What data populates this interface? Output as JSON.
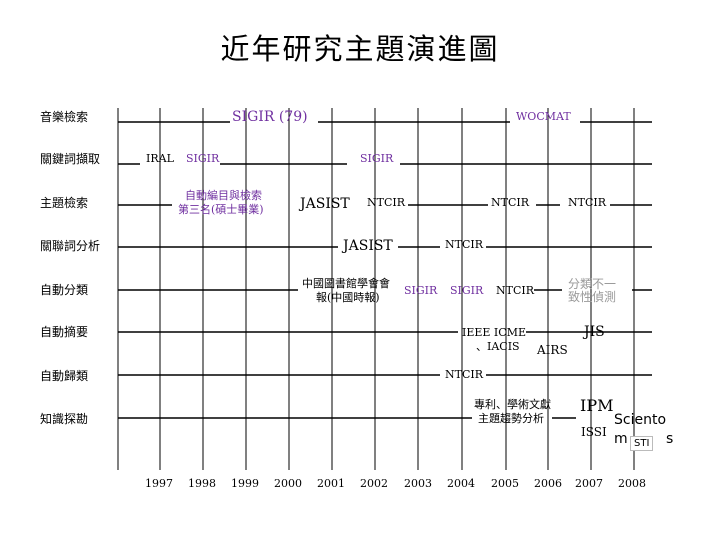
{
  "title": "近年研究主題演進圖",
  "rows": [
    "音樂檢索",
    "關鍵詞擷取",
    "主題檢索",
    "關聯詞分析",
    "自動分類",
    "自動摘要",
    "自動歸類",
    "知識探勘"
  ],
  "years": [
    "1997",
    "1998",
    "1999",
    "2000",
    "2001",
    "2002",
    "2003",
    "2004",
    "2005",
    "2006",
    "2007",
    "2008"
  ],
  "labels": {
    "sigir79": "SIGIR (79)",
    "wocmat": "WOCMAT",
    "iral": "IRAL",
    "sigir_r2a": "SIGIR",
    "sigir_r2b": "SIGIR",
    "auto_index_1": "自動編目與檢索",
    "auto_index_2": "第三名(碩士畢業)",
    "jasist_r3": "JASIST",
    "ntcir_r3a": "NTCIR",
    "ntcir_r3b": "NTCIR",
    "ntcir_r3c": "NTCIR",
    "jasist_r4": "JASIST",
    "ntcir_r4": "NTCIR",
    "lib_assoc_1": "中國圖書館學會會",
    "lib_assoc_2": "報(中國時報)",
    "sigir_r5a": "SIGIR",
    "sigir_r5b": "SIGIR",
    "ntcir_r5": "NTCIR",
    "consistency_1": "分類不一",
    "consistency_2": "致性偵測",
    "ieee_1": "IEEE ICME",
    "ieee_2": "、IACIS",
    "airs": "AIRS",
    "jis": "JIS",
    "ntcir_r7": "NTCIR",
    "patent_1": "專利、學術文獻",
    "patent_2": "主題趨勢分析",
    "ipm": "IPM",
    "issi": "ISSI",
    "sciento": "Sciento",
    "metrics_tail": "m",
    "metrics_end": "s",
    "sti": "STI"
  }
}
